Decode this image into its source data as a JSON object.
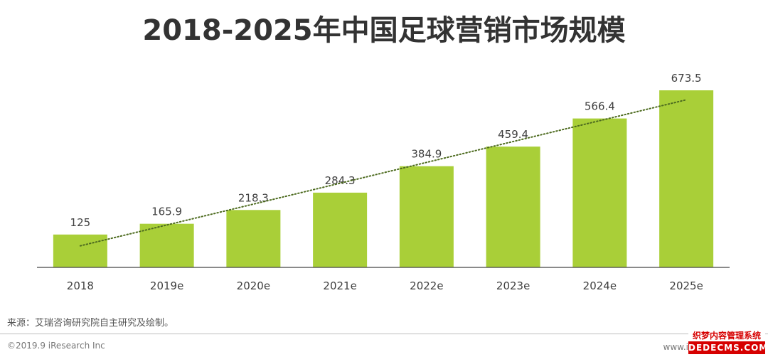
{
  "header": {
    "title": "2018-2025年中国足球营销市场规模"
  },
  "chart_data": {
    "type": "bar",
    "title": "2018-2025年中国足球营销市场规模",
    "xlabel": "",
    "ylabel": "",
    "categories": [
      "2018",
      "2019e",
      "2020e",
      "2021e",
      "2022e",
      "2023e",
      "2024e",
      "2025e"
    ],
    "values": [
      125,
      165.9,
      218.3,
      284.3,
      384.9,
      459.4,
      566.4,
      673.5
    ],
    "value_labels": [
      "125",
      "165.9",
      "218.3",
      "284.3",
      "384.9",
      "459.4",
      "566.4",
      "673.5"
    ],
    "ylim": [
      0,
      700
    ],
    "grid": false,
    "trendline": "linear, dotted",
    "colors": {
      "bar": "#a9cf38",
      "trend": "#4d6b1f",
      "axis": "#444444"
    }
  },
  "footer": {
    "source": "来源：艾瑞咨询研究院自主研究及绘制。",
    "copyright": "©2019.9 iResearch Inc",
    "site_partial": "www.i",
    "watermark_top": "织梦内容管理系统",
    "watermark_bottom": "DEDECMS.COM"
  }
}
